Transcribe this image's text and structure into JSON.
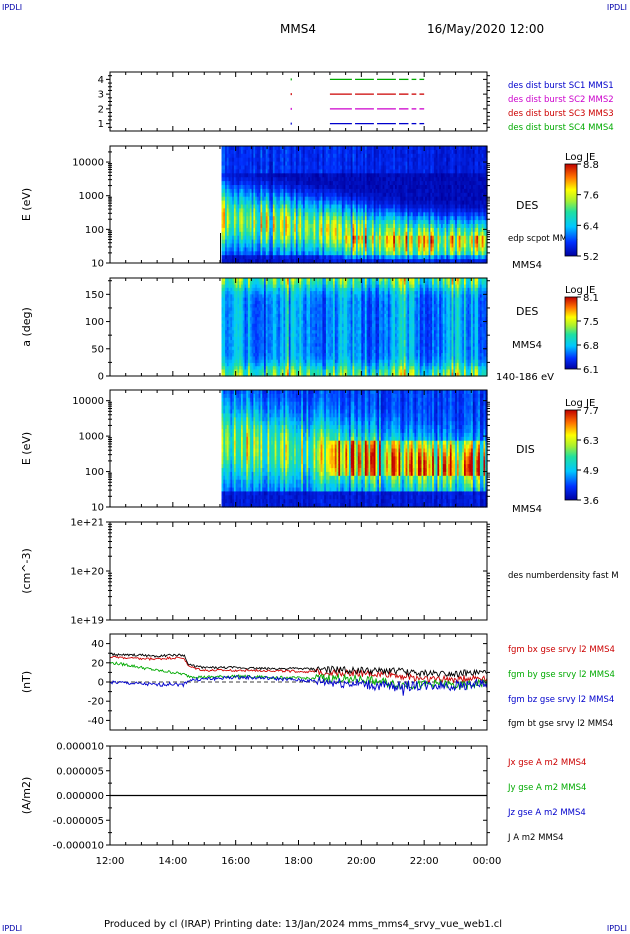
{
  "corners": {
    "tl": "IPDLI",
    "tr": "IPDLI",
    "bl": "IPDLI",
    "br": "IPDLI"
  },
  "header": {
    "spacecraft": "MMS4",
    "datetime": "16/May/2020 12:00"
  },
  "footer": {
    "text": "Produced by cl (IRAP)   Printing date: 13/Jan/2024   mms_mms4_srvy_vue_web1.cl"
  },
  "colors": {
    "mms1": "#0000cc",
    "mms2": "#cc00cc",
    "mms3": "#cc0000",
    "mms4": "#00aa00",
    "bt": "#000000"
  },
  "chart_data": [
    {
      "type": "line",
      "panel": "availability",
      "ylim": [
        0.5,
        4.5
      ],
      "yticks": [
        "1",
        "2",
        "3",
        "4"
      ],
      "legend": [
        "des dist burst SC1 MMS1",
        "des dist burst SC2 MMS2",
        "des dist burst SC3 MMS3",
        "des dist burst SC4 MMS4"
      ],
      "series": [
        {
          "name": "des dist burst SC1 MMS1",
          "level": 1,
          "dots_hours": [
            17.75
          ],
          "segments": [
            [
              19.0,
              19.7
            ],
            [
              19.8,
              20.4
            ],
            [
              20.5,
              21.1
            ],
            [
              21.2,
              21.5
            ],
            [
              21.6,
              21.75
            ],
            [
              21.85,
              22.0
            ]
          ]
        },
        {
          "name": "des dist burst SC2 MMS2",
          "level": 2,
          "dots_hours": [
            17.75
          ],
          "segments": [
            [
              19.0,
              19.7
            ],
            [
              19.8,
              20.4
            ],
            [
              20.5,
              21.1
            ],
            [
              21.2,
              21.5
            ],
            [
              21.6,
              21.75
            ],
            [
              21.85,
              22.0
            ]
          ]
        },
        {
          "name": "des dist burst SC3 MMS3",
          "level": 3,
          "dots_hours": [
            17.75
          ],
          "segments": [
            [
              19.0,
              19.7
            ],
            [
              19.8,
              20.4
            ],
            [
              20.5,
              21.1
            ],
            [
              21.2,
              21.5
            ],
            [
              21.6,
              21.75
            ],
            [
              21.85,
              22.0
            ]
          ]
        },
        {
          "name": "des dist burst SC4 MMS4",
          "level": 4,
          "dots_hours": [
            17.75
          ],
          "segments": [
            [
              19.0,
              19.7
            ],
            [
              19.8,
              20.4
            ],
            [
              20.5,
              21.1
            ],
            [
              21.2,
              21.5
            ],
            [
              21.6,
              21.75
            ],
            [
              21.85,
              22.0
            ]
          ]
        }
      ]
    },
    {
      "type": "heatmap",
      "panel": "des-energy",
      "ylabel": "E (eV)",
      "yscale": "log",
      "ylim": [
        10,
        30000
      ],
      "yticks": [
        "10",
        "100",
        "1000",
        "10000"
      ],
      "label": "DES",
      "overlay_label": "edp scpot MMS4",
      "bottom_label": "MMS4",
      "data_start_hour": 15.55,
      "colorbar": {
        "title": "Log JE",
        "ticks": [
          "8.8",
          "7.6",
          "6.4",
          "5.2"
        ],
        "range": [
          5.2,
          8.8
        ]
      },
      "description_profile": "peak flux ~100-300 eV rising after 20:00"
    },
    {
      "type": "heatmap",
      "panel": "des-pitch",
      "ylabel": "a (deg)",
      "ylim": [
        0,
        180
      ],
      "yticks": [
        "0",
        "50",
        "100",
        "150"
      ],
      "label": "DES",
      "label2": "MMS4",
      "energy_range": "140-186 eV",
      "data_start_hour": 15.55,
      "colorbar": {
        "title": "Log JE",
        "ticks": [
          "8.1",
          "7.5",
          "6.8",
          "6.1"
        ],
        "range": [
          6.1,
          8.1
        ]
      }
    },
    {
      "type": "heatmap",
      "panel": "dis-energy",
      "ylabel": "E (eV)",
      "yscale": "log",
      "ylim": [
        10,
        20000
      ],
      "yticks": [
        "10",
        "100",
        "1000",
        "10000"
      ],
      "label": "DIS",
      "bottom_label": "MMS4",
      "data_start_hour": 15.55,
      "colorbar": {
        "title": "Log JE",
        "ticks": [
          "7.7",
          "6.3",
          "4.9",
          "3.6"
        ],
        "range": [
          3.6,
          7.7
        ]
      }
    },
    {
      "type": "line",
      "panel": "density",
      "ylabel": "(cm^-3)",
      "yscale": "log",
      "ylim": [
        1e+19,
        1e+21
      ],
      "yticks": [
        "1e+19",
        "1e+20",
        "1e+21"
      ],
      "legend": [
        "des numberdensity fast M"
      ],
      "series": []
    },
    {
      "type": "line",
      "panel": "fgm",
      "ylabel": "(nT)",
      "ylim": [
        -50,
        50
      ],
      "yticks": [
        "-40",
        "-20",
        "0",
        "20",
        "40"
      ],
      "legend": [
        "fgm bx gse srvy l2 MMS4",
        "fgm by gse srvy l2 MMS4",
        "fgm bz gse srvy l2 MMS4",
        "fgm bt gse srvy l2 MMS4"
      ],
      "series": [
        {
          "name": "fgm bx gse srvy l2 MMS4",
          "x": [
            12.0,
            12.5,
            13.0,
            13.5,
            14.0,
            14.35,
            14.5,
            15.0,
            16.0,
            17.0,
            18.0,
            19.0,
            20.0,
            20.5,
            21.0,
            21.5,
            22.0,
            22.5,
            23.0,
            23.5,
            24.0
          ],
          "values": [
            26,
            25,
            24,
            24,
            25,
            25,
            16,
            12,
            12,
            12,
            11,
            10,
            9,
            8,
            8,
            5,
            4,
            3,
            3,
            4,
            5
          ]
        },
        {
          "name": "fgm by gse srvy l2 MMS4",
          "x": [
            12.0,
            12.5,
            13.0,
            13.5,
            14.0,
            14.35,
            14.5,
            15.0,
            16.0,
            17.0,
            18.0,
            19.0,
            20.0,
            20.5,
            21.0,
            21.5,
            22.0,
            22.5,
            23.0,
            23.5,
            24.0
          ],
          "values": [
            20,
            18,
            15,
            12,
            10,
            8,
            6,
            5,
            6,
            5,
            4,
            4,
            3,
            1,
            -2,
            -3,
            -3,
            -2,
            -4,
            -3,
            0
          ]
        },
        {
          "name": "fgm bz gse srvy l2 MMS4",
          "x": [
            12.0,
            12.5,
            13.0,
            13.5,
            14.0,
            14.35,
            14.5,
            15.0,
            16.0,
            17.0,
            18.0,
            19.0,
            20.0,
            20.5,
            21.0,
            21.5,
            22.0,
            22.5,
            23.0,
            23.5,
            24.0
          ],
          "values": [
            0,
            -1,
            -2,
            -3,
            -2,
            -3,
            2,
            3,
            5,
            4,
            2,
            0,
            -2,
            -4,
            -5,
            -3,
            -4,
            -3,
            -4,
            -2,
            -2
          ]
        },
        {
          "name": "fgm bt gse srvy l2 MMS4",
          "x": [
            12.0,
            12.5,
            13.0,
            13.5,
            14.0,
            14.35,
            14.5,
            15.0,
            16.0,
            17.0,
            18.0,
            19.0,
            20.0,
            20.5,
            21.0,
            21.5,
            22.0,
            22.5,
            23.0,
            23.5,
            24.0
          ],
          "values": [
            29,
            28,
            28,
            27,
            28,
            28,
            18,
            15,
            15,
            14,
            14,
            13,
            12,
            11,
            12,
            10,
            9,
            9,
            9,
            9,
            10
          ]
        }
      ]
    },
    {
      "type": "line",
      "panel": "current",
      "ylabel": "(A/m2)",
      "ylim": [
        -1e-05,
        1e-05
      ],
      "yticks": [
        "-0.000010",
        "-0.000005",
        "0.000000",
        "0.000005",
        "0.000010"
      ],
      "legend": [
        "Jx gse A m2 MMS4",
        "Jy gse A m2 MMS4",
        "Jz gse A m2 MMS4",
        "J A m2 MMS4"
      ],
      "series": [
        {
          "name": "J A m2 MMS4",
          "x": [
            12.0,
            24.0
          ],
          "values": [
            0.0,
            0.0
          ]
        }
      ]
    }
  ],
  "time_axis": {
    "ticks": [
      "12:00",
      "14:00",
      "16:00",
      "18:00",
      "20:00",
      "22:00",
      "00:00"
    ],
    "range_hours": [
      12,
      24
    ]
  }
}
